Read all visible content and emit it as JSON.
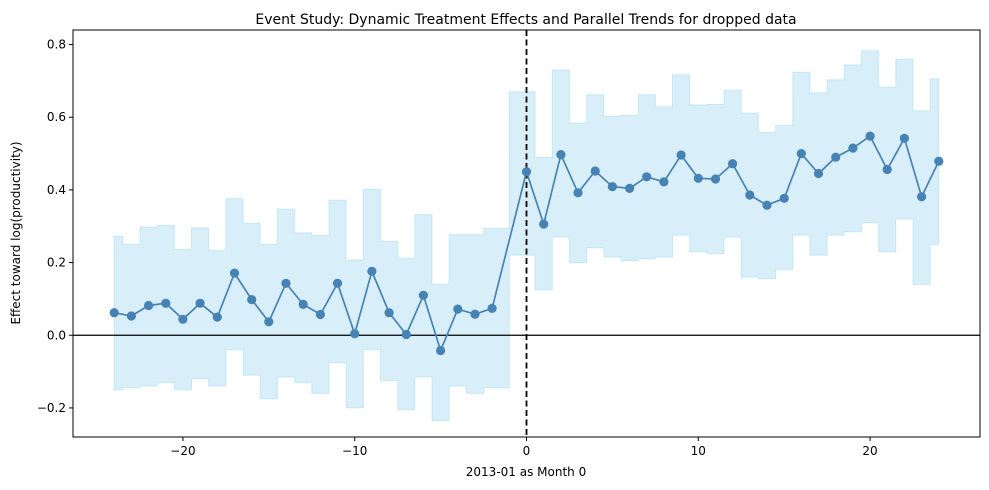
{
  "chart_data": {
    "type": "line",
    "title": "Event Study: Dynamic Treatment Effects and Parallel Trends for dropped data",
    "xlabel": "2013-01 as Month 0",
    "ylabel": "Effect toward log(productivity)",
    "xlim": [
      -26.4,
      26.4
    ],
    "ylim": [
      -0.28,
      0.84
    ],
    "xticks": [
      -20,
      -10,
      0,
      10,
      20
    ],
    "xtick_labels": [
      "−20",
      "−10",
      "0",
      "10",
      "20"
    ],
    "yticks": [
      -0.2,
      0.0,
      0.2,
      0.4,
      0.6,
      0.8
    ],
    "ytick_labels": [
      "−0.2",
      "0.0",
      "0.2",
      "0.4",
      "0.6",
      "0.8"
    ],
    "grid": false,
    "event_line_x": 0,
    "zero_line_y": 0,
    "colors": {
      "line": "#4682b4",
      "ci_fill": "#87ceeb",
      "ci_opacity": 0.32,
      "axis": "#000000"
    },
    "x": [
      -24,
      -23,
      -22,
      -21,
      -20,
      -19,
      -18,
      -17,
      -16,
      -15,
      -14,
      -13,
      -12,
      -11,
      -10,
      -9,
      -8,
      -7,
      -6,
      -5,
      -4,
      -3,
      -2,
      0,
      1,
      2,
      3,
      4,
      5,
      6,
      7,
      8,
      9,
      10,
      11,
      12,
      13,
      14,
      15,
      16,
      17,
      18,
      19,
      20,
      21,
      22,
      23,
      24
    ],
    "series": [
      {
        "values": [
          0.062,
          0.053,
          0.082,
          0.088,
          0.044,
          0.088,
          0.05,
          0.171,
          0.098,
          0.037,
          0.143,
          0.085,
          0.057,
          0.143,
          0.004,
          0.176,
          0.062,
          0.002,
          0.11,
          -0.042,
          0.072,
          0.058,
          0.074,
          0.45,
          0.306,
          0.497,
          0.392,
          0.452,
          0.409,
          0.404,
          0.436,
          0.422,
          0.496,
          0.432,
          0.43,
          0.472,
          0.386,
          0.358,
          0.377,
          0.5,
          0.445,
          0.49,
          0.515,
          0.548,
          0.456,
          0.542,
          0.381,
          0.479
        ],
        "ci_lower": [
          -0.15,
          -0.145,
          -0.14,
          -0.13,
          -0.15,
          -0.12,
          -0.14,
          -0.04,
          -0.11,
          -0.175,
          -0.115,
          -0.13,
          -0.16,
          -0.075,
          -0.2,
          -0.04,
          -0.125,
          -0.205,
          -0.115,
          -0.235,
          -0.14,
          -0.16,
          -0.145,
          0.22,
          0.125,
          0.27,
          0.2,
          0.24,
          0.215,
          0.205,
          0.21,
          0.215,
          0.275,
          0.23,
          0.225,
          0.27,
          0.16,
          0.155,
          0.18,
          0.275,
          0.22,
          0.275,
          0.285,
          0.31,
          0.23,
          0.32,
          0.14,
          0.25
        ],
        "ci_upper": [
          0.272,
          0.25,
          0.298,
          0.302,
          0.236,
          0.295,
          0.234,
          0.376,
          0.308,
          0.25,
          0.347,
          0.282,
          0.275,
          0.372,
          0.207,
          0.402,
          0.258,
          0.212,
          0.332,
          0.14,
          0.277,
          0.277,
          0.294,
          0.67,
          0.49,
          0.73,
          0.584,
          0.662,
          0.603,
          0.605,
          0.662,
          0.629,
          0.717,
          0.634,
          0.635,
          0.674,
          0.611,
          0.558,
          0.577,
          0.724,
          0.667,
          0.703,
          0.744,
          0.783,
          0.683,
          0.76,
          0.618,
          0.706
        ]
      }
    ]
  }
}
